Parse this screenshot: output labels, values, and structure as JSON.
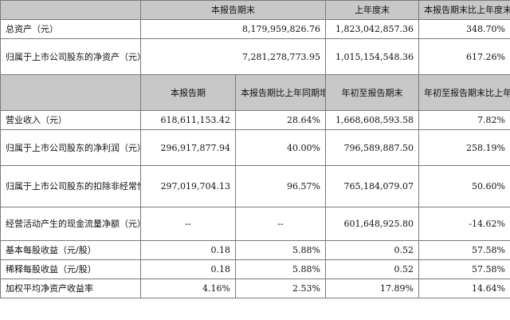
{
  "top_header": {
    "col1": "本报告期末",
    "col2": "上年度末",
    "col3": "本报告期末比上年度末增减"
  },
  "top_rows": [
    {
      "label": "总资产（元）",
      "v1": "8,179,959,826.76",
      "v2": "1,823,042,857.36",
      "v3": "348.70%"
    },
    {
      "label": "归属于上市公司股东的净资产（元）",
      "v1": "7,281,278,773.95",
      "v2": "1,015,154,548.36",
      "v3": "617.26%"
    }
  ],
  "bottom_header": {
    "col1": "本报告期",
    "col2": "本报告期比上年同期增减",
    "col3": "年初至报告期末",
    "col4": "年初至报告期末比上年同期增减"
  },
  "bottom_rows": [
    {
      "label": "营业收入（元）",
      "v1": "618,611,153.42",
      "v2": "28.64%",
      "v3": "1,668,608,593.58",
      "v4": "7.82%"
    },
    {
      "label": "归属于上市公司股东的净利润（元）",
      "v1": "296,917,877.94",
      "v2": "40.00%",
      "v3": "796,589,887.50",
      "v4": "258.19%"
    },
    {
      "label": "归属于上市公司股东的扣除非经常性损益的净利润（元）",
      "v1": "297,019,704.13",
      "v2": "96.57%",
      "v3": "765,184,079.07",
      "v4": "50.60%"
    },
    {
      "label": "经营活动产生的现金流量净额（元）",
      "v1": "--",
      "v2": "--",
      "v3": "601,648,925.80",
      "v4": "-14.62%"
    },
    {
      "label": "基本每股收益（元/股）",
      "v1": "0.18",
      "v2": "5.88%",
      "v3": "0.52",
      "v4": "57.58%"
    },
    {
      "label": "稀释每股收益（元/股）",
      "v1": "0.18",
      "v2": "5.88%",
      "v3": "0.52",
      "v4": "57.58%"
    },
    {
      "label": "加权平均净资产收益率",
      "v1": "4.16%",
      "v2": "2.53%",
      "v3": "17.89%",
      "v4": "14.64%"
    }
  ]
}
